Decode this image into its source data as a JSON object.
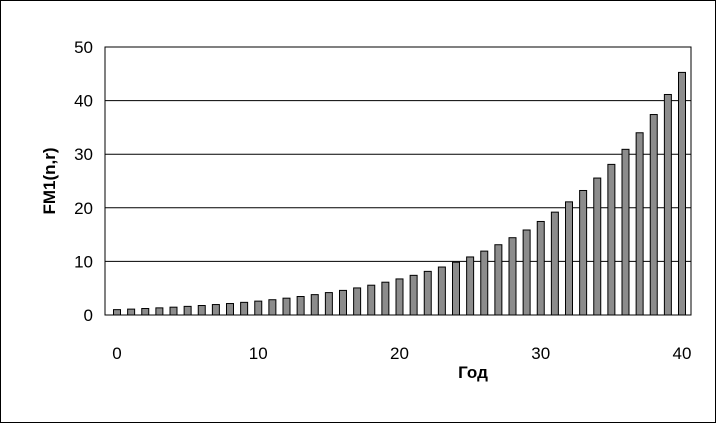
{
  "chart_data": {
    "type": "bar",
    "title": "",
    "xlabel": "Год",
    "ylabel": "FM1(n,r)",
    "xlim": [
      0,
      40
    ],
    "ylim": [
      0,
      50
    ],
    "x_ticks": [
      "0",
      "10",
      "20",
      "30",
      "40"
    ],
    "y_ticks": [
      "0",
      "10",
      "20",
      "30",
      "40",
      "50"
    ],
    "grid": "horizontal",
    "colors": {
      "bar_fill": "#8c8c8c",
      "bar_stroke": "#000000"
    },
    "x": [
      0,
      1,
      2,
      3,
      4,
      5,
      6,
      7,
      8,
      9,
      10,
      11,
      12,
      13,
      14,
      15,
      16,
      17,
      18,
      19,
      20,
      21,
      22,
      23,
      24,
      25,
      26,
      27,
      28,
      29,
      30,
      31,
      32,
      33,
      34,
      35,
      36,
      37,
      38,
      39,
      40
    ],
    "values": [
      1.0,
      1.1,
      1.21,
      1.33,
      1.46,
      1.61,
      1.77,
      1.95,
      2.14,
      2.36,
      2.59,
      2.85,
      3.14,
      3.45,
      3.8,
      4.18,
      4.59,
      5.05,
      5.56,
      6.12,
      6.73,
      7.4,
      8.14,
      8.95,
      9.85,
      10.83,
      11.92,
      13.11,
      14.42,
      15.86,
      17.45,
      19.19,
      21.11,
      23.23,
      25.55,
      28.1,
      30.91,
      34.0,
      37.4,
      41.14,
      45.26
    ]
  }
}
